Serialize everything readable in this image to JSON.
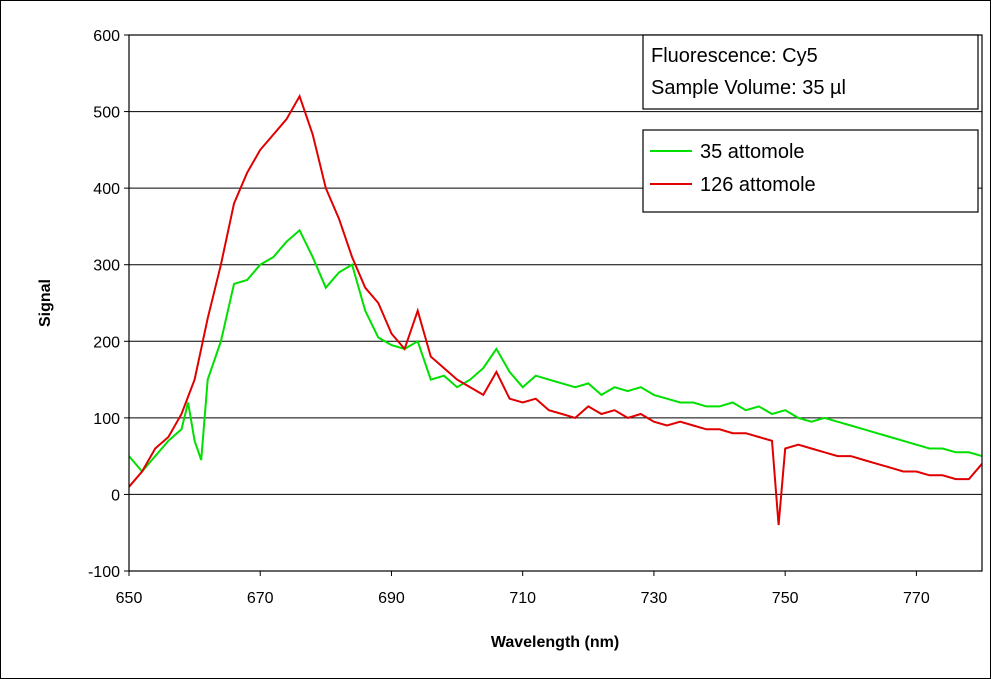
{
  "chart_data": {
    "type": "line",
    "title": "",
    "xlabel": "Wavelength (nm)",
    "ylabel": "Signal",
    "xlim": [
      650,
      780
    ],
    "ylim": [
      -100,
      600
    ],
    "x_ticks": [
      650,
      670,
      690,
      710,
      730,
      750,
      770
    ],
    "y_ticks": [
      -100,
      0,
      100,
      200,
      300,
      400,
      500,
      600
    ],
    "x_tick_labels": [
      "650",
      "670",
      "690",
      "710",
      "730",
      "750",
      "770"
    ],
    "y_tick_labels": [
      "-100",
      "0",
      "100",
      "200",
      "300",
      "400",
      "500",
      "600"
    ],
    "grid": "horizontal",
    "annotation_lines": [
      "Fluorescence: Cy5",
      "Sample Volume: 35 µl"
    ],
    "legend_position": "top-right",
    "series": [
      {
        "name": "35 attomole",
        "color": "#00e000",
        "x": [
          650,
          652,
          654,
          656,
          658,
          659,
          660,
          661,
          662,
          664,
          666,
          668,
          670,
          672,
          674,
          676,
          678,
          680,
          682,
          684,
          686,
          688,
          690,
          692,
          694,
          696,
          698,
          700,
          702,
          704,
          706,
          708,
          710,
          712,
          714,
          716,
          718,
          720,
          722,
          724,
          726,
          728,
          730,
          732,
          734,
          736,
          738,
          740,
          742,
          744,
          746,
          748,
          750,
          752,
          754,
          756,
          758,
          760,
          762,
          764,
          766,
          768,
          770,
          772,
          774,
          776,
          778,
          780
        ],
        "y": [
          50,
          30,
          50,
          70,
          85,
          120,
          70,
          45,
          150,
          200,
          275,
          280,
          300,
          310,
          330,
          345,
          310,
          270,
          290,
          300,
          240,
          205,
          195,
          190,
          200,
          150,
          155,
          140,
          150,
          165,
          190,
          160,
          140,
          155,
          150,
          145,
          140,
          145,
          130,
          140,
          135,
          140,
          130,
          125,
          120,
          120,
          115,
          115,
          120,
          110,
          115,
          105,
          110,
          100,
          95,
          100,
          95,
          90,
          85,
          80,
          75,
          70,
          65,
          60,
          60,
          55,
          55,
          50
        ]
      },
      {
        "name": "126 attomole",
        "color": "#e00000",
        "x": [
          650,
          652,
          654,
          656,
          658,
          660,
          662,
          664,
          666,
          668,
          670,
          672,
          674,
          676,
          678,
          680,
          682,
          684,
          686,
          688,
          690,
          692,
          694,
          696,
          698,
          700,
          702,
          704,
          706,
          708,
          710,
          712,
          714,
          716,
          718,
          720,
          722,
          724,
          726,
          728,
          730,
          732,
          734,
          736,
          738,
          740,
          742,
          744,
          746,
          748,
          749,
          750,
          752,
          754,
          756,
          758,
          760,
          762,
          764,
          766,
          768,
          770,
          772,
          774,
          776,
          778,
          780
        ],
        "y": [
          10,
          30,
          60,
          75,
          105,
          150,
          230,
          300,
          380,
          420,
          450,
          470,
          490,
          520,
          470,
          400,
          360,
          310,
          270,
          250,
          210,
          190,
          240,
          180,
          165,
          150,
          140,
          130,
          160,
          125,
          120,
          125,
          110,
          105,
          100,
          115,
          105,
          110,
          100,
          105,
          95,
          90,
          95,
          90,
          85,
          85,
          80,
          80,
          75,
          70,
          -40,
          60,
          65,
          60,
          55,
          50,
          50,
          45,
          40,
          35,
          30,
          30,
          25,
          25,
          20,
          20,
          40
        ]
      }
    ]
  }
}
